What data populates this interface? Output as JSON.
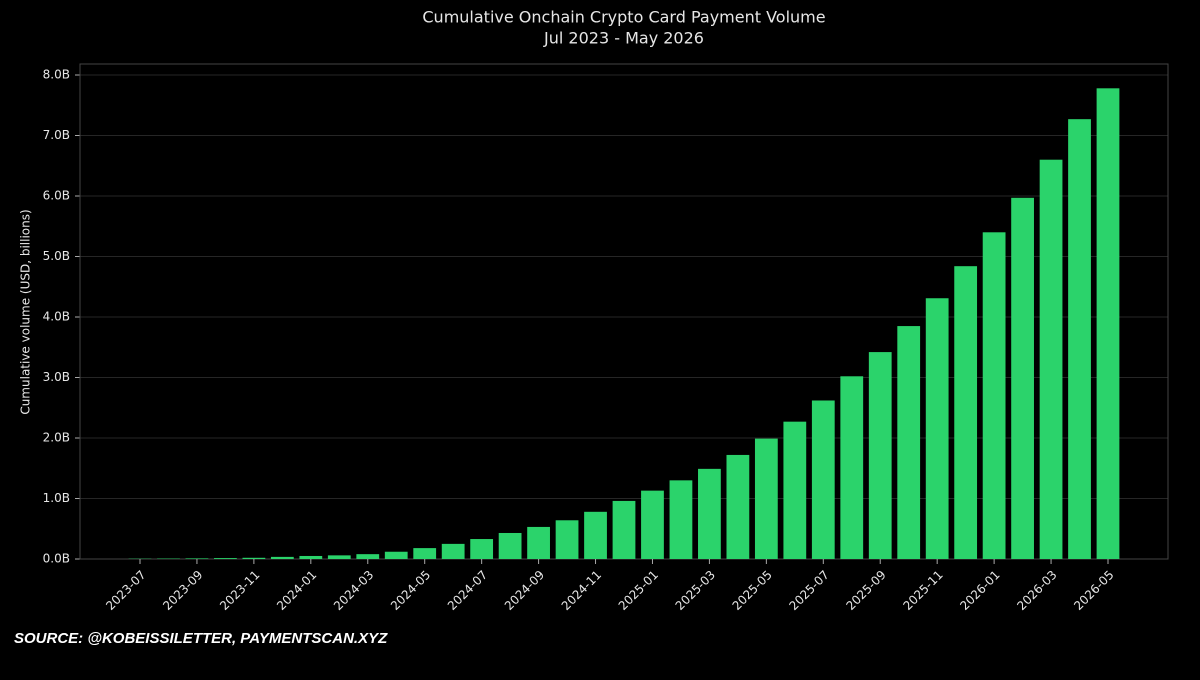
{
  "chart_data": {
    "type": "bar",
    "title": "Cumulative Onchain Crypto Card Payment Volume",
    "subtitle": "Jul 2023 - May 2026",
    "y_label": "Cumulative volume (USD, billions)",
    "source": "SOURCE: @KOBEISSILETTER,  PAYMENTSCAN.XYZ",
    "categories": [
      "2023-07",
      null,
      "2023-09",
      null,
      "2023-11",
      null,
      "2024-01",
      null,
      "2024-03",
      null,
      "2024-05",
      null,
      "2024-07",
      null,
      "2024-09",
      null,
      "2024-11",
      null,
      "2025-01",
      null,
      "2025-03",
      null,
      "2025-05",
      null,
      "2025-07",
      null,
      "2025-09",
      null,
      "2025-11",
      null,
      "2026-01",
      null,
      "2026-03",
      null,
      "2026-05"
    ],
    "values": [
      0.005,
      0.007,
      0.01,
      0.015,
      0.02,
      0.035,
      0.05,
      0.06,
      0.08,
      0.12,
      0.18,
      0.25,
      0.33,
      0.43,
      0.53,
      0.64,
      0.78,
      0.96,
      1.13,
      1.3,
      1.49,
      1.72,
      1.99,
      2.27,
      2.62,
      3.02,
      3.42,
      3.85,
      4.31,
      4.84,
      5.4,
      5.97,
      6.6,
      7.27,
      7.78
    ],
    "color": "#2bd36b",
    "ylim": [
      0,
      8
    ],
    "yticks": [
      {
        "value": 0,
        "label": "0.0B"
      },
      {
        "value": 1,
        "label": "1.0B"
      },
      {
        "value": 2,
        "label": "2.0B"
      },
      {
        "value": 3,
        "label": "3.0B"
      },
      {
        "value": 4,
        "label": "4.0B"
      },
      {
        "value": 5,
        "label": "5.0B"
      },
      {
        "value": 6,
        "label": "6.0B"
      },
      {
        "value": 7,
        "label": "7.0B"
      },
      {
        "value": 8,
        "label": "8.0B"
      }
    ],
    "grid": true
  }
}
